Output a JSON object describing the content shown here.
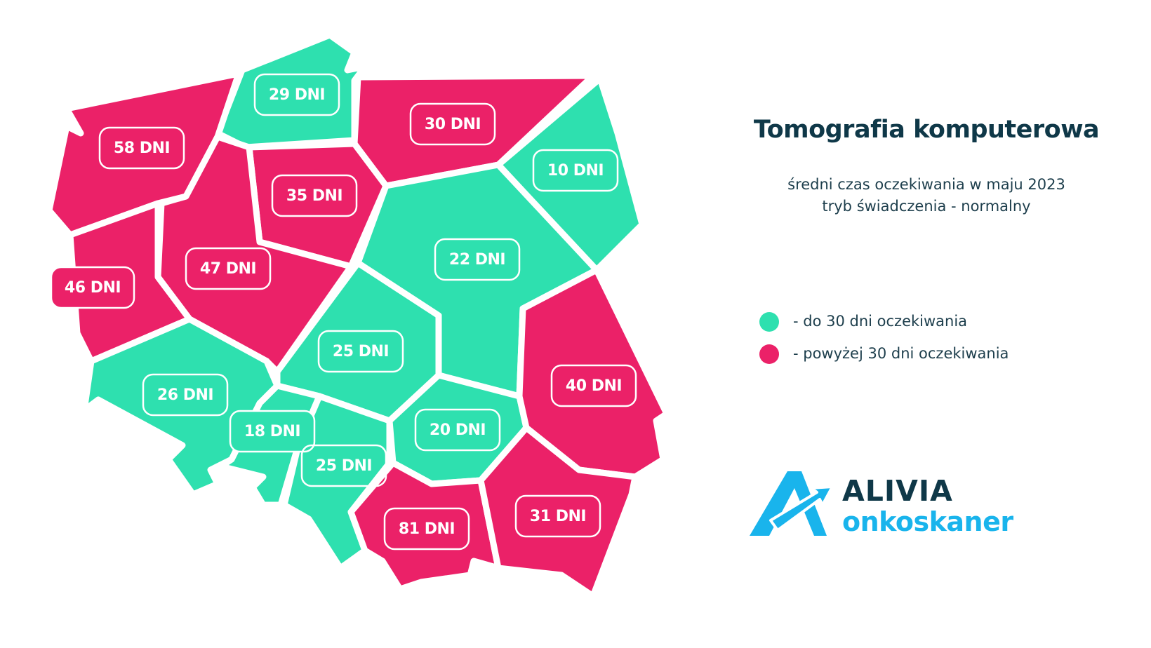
{
  "title": "Tomografia komputerowa",
  "subtitle_line1": "średni czas oczekiwania w maju 2023",
  "subtitle_line2": "tryb świadczenia - normalny",
  "colors": {
    "green": "#2ee0af",
    "pink": "#eb2168",
    "title_dark": "#0f3848",
    "logo_blue": "#19b4ec"
  },
  "legend": [
    {
      "label": "- do 30 dni oczekiwania",
      "color": "#2ee0af"
    },
    {
      "label": "- powyżej 30 dni oczekiwania",
      "color": "#eb2168"
    }
  ],
  "logo": {
    "name": "ALIVIA",
    "sub": "onkoskaner"
  },
  "regions": [
    {
      "id": "pomorskie",
      "label": "29 DNI",
      "days": 29,
      "category": "green"
    },
    {
      "id": "zachodniopomorskie",
      "label": "58 DNI",
      "days": 58,
      "category": "pink"
    },
    {
      "id": "warminsko-mazurskie",
      "label": "30 DNI",
      "days": 30,
      "category": "pink"
    },
    {
      "id": "podlaskie",
      "label": "10 DNI",
      "days": 10,
      "category": "green"
    },
    {
      "id": "kujawsko-pomorskie",
      "label": "35 DNI",
      "days": 35,
      "category": "pink"
    },
    {
      "id": "wielkopolskie",
      "label": "47 DNI",
      "days": 47,
      "category": "pink"
    },
    {
      "id": "lubuskie",
      "label": "46 DNI",
      "days": 46,
      "category": "pink"
    },
    {
      "id": "mazowieckie",
      "label": "22 DNI",
      "days": 22,
      "category": "green"
    },
    {
      "id": "lodzkie",
      "label": "25 DNI",
      "days": 25,
      "category": "green"
    },
    {
      "id": "dolnoslaskie",
      "label": "26 DNI",
      "days": 26,
      "category": "green"
    },
    {
      "id": "opolskie",
      "label": "18 DNI",
      "days": 18,
      "category": "green"
    },
    {
      "id": "slaskie",
      "label": "25 DNI",
      "days": 25,
      "category": "green"
    },
    {
      "id": "swietokrzyskie",
      "label": "20 DNI",
      "days": 20,
      "category": "green"
    },
    {
      "id": "lubelskie",
      "label": "40 DNI",
      "days": 40,
      "category": "pink"
    },
    {
      "id": "malopolskie",
      "label": "81 DNI",
      "days": 81,
      "category": "pink"
    },
    {
      "id": "podkarpackie",
      "label": "31 DNI",
      "days": 31,
      "category": "pink"
    }
  ]
}
